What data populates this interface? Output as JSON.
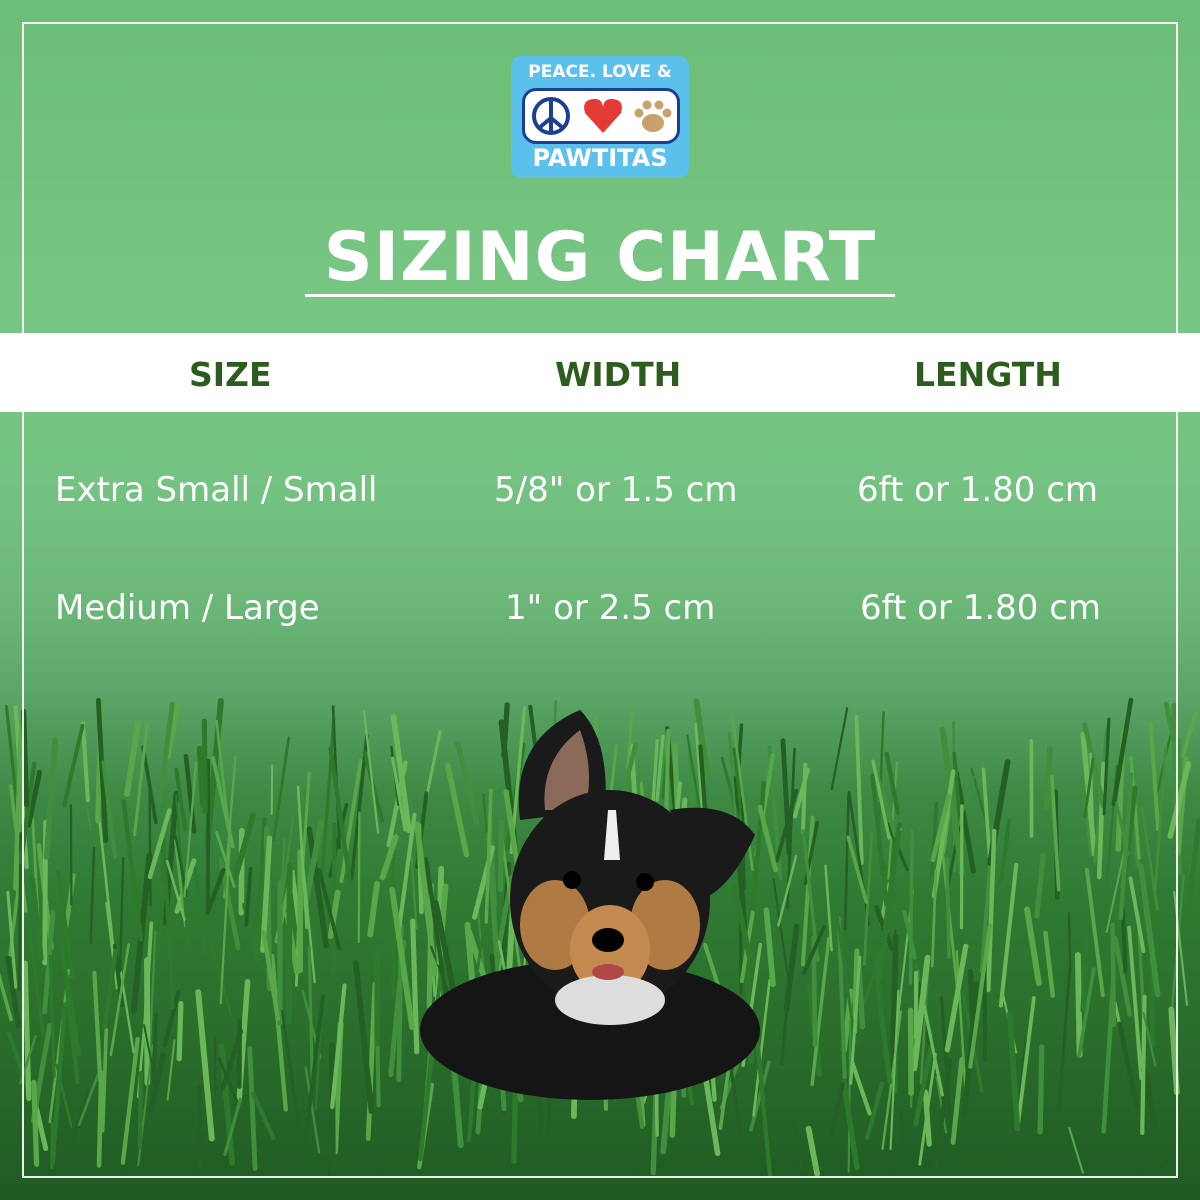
{
  "logo": {
    "line1": "PEACE. LOVE &",
    "line2": "PAWTITAS",
    "icons": [
      "peace-icon",
      "heart-icon",
      "paw-icon"
    ]
  },
  "title": "SIZING CHART",
  "table": {
    "headers": [
      "SIZE",
      "WIDTH",
      "LENGTH"
    ],
    "rows": [
      [
        "Extra Small / Small",
        "5/8\" or 1.5 cm",
        "6ft or 1.80 cm"
      ],
      [
        "Medium / Large",
        "1\" or 2.5 cm",
        "6ft or 1.80 cm"
      ]
    ]
  },
  "colors": {
    "header_text": "#2c5c1e",
    "background": "#74c382",
    "logo_bg": "#5bc0ec"
  }
}
